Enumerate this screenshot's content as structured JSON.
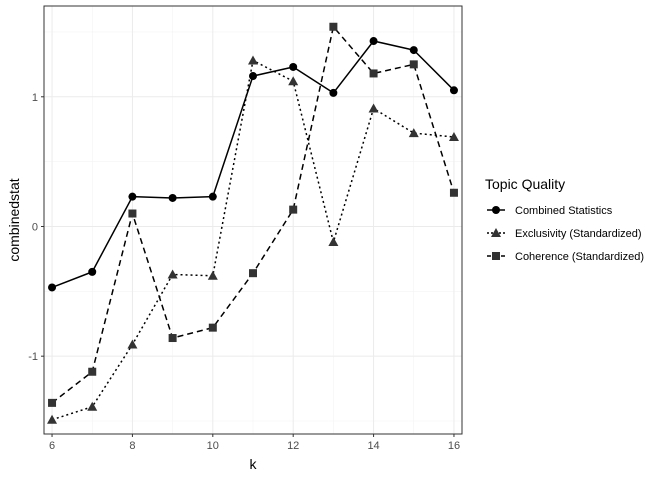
{
  "chart_data": {
    "type": "line",
    "xlabel": "k",
    "ylabel": "combinedstat",
    "xlim": [
      5.8,
      16.2
    ],
    "ylim": [
      -1.6,
      1.7
    ],
    "x_ticks": [
      6,
      8,
      10,
      12,
      14,
      16
    ],
    "y_ticks": [
      -1,
      0,
      1
    ],
    "y_tick_labels": [
      "-1",
      "0",
      "1"
    ],
    "grid": true,
    "legend": {
      "title": "Topic Quality",
      "position": "right"
    },
    "x": [
      6,
      7,
      8,
      9,
      10,
      11,
      12,
      13,
      14,
      15,
      16
    ],
    "series": [
      {
        "name": "Combined Statistics",
        "line": "solid",
        "marker": "circle",
        "color": "#000000",
        "values": [
          -0.47,
          -0.35,
          0.23,
          0.22,
          0.23,
          1.16,
          1.23,
          1.03,
          1.43,
          1.36,
          1.05
        ]
      },
      {
        "name": "Exclusivity (Standardized)",
        "line": "dotted",
        "marker": "triangle",
        "color": "#333333",
        "values": [
          -1.49,
          -1.39,
          -0.91,
          -0.37,
          -0.38,
          1.28,
          1.12,
          -0.12,
          0.91,
          0.72,
          0.69
        ]
      },
      {
        "name": "Coherence (Standardized)",
        "line": "dashed",
        "marker": "square",
        "color": "#333333",
        "values": [
          -1.36,
          -1.12,
          0.1,
          -0.86,
          -0.78,
          -0.36,
          0.13,
          1.54,
          1.18,
          1.25,
          0.26
        ]
      }
    ]
  }
}
